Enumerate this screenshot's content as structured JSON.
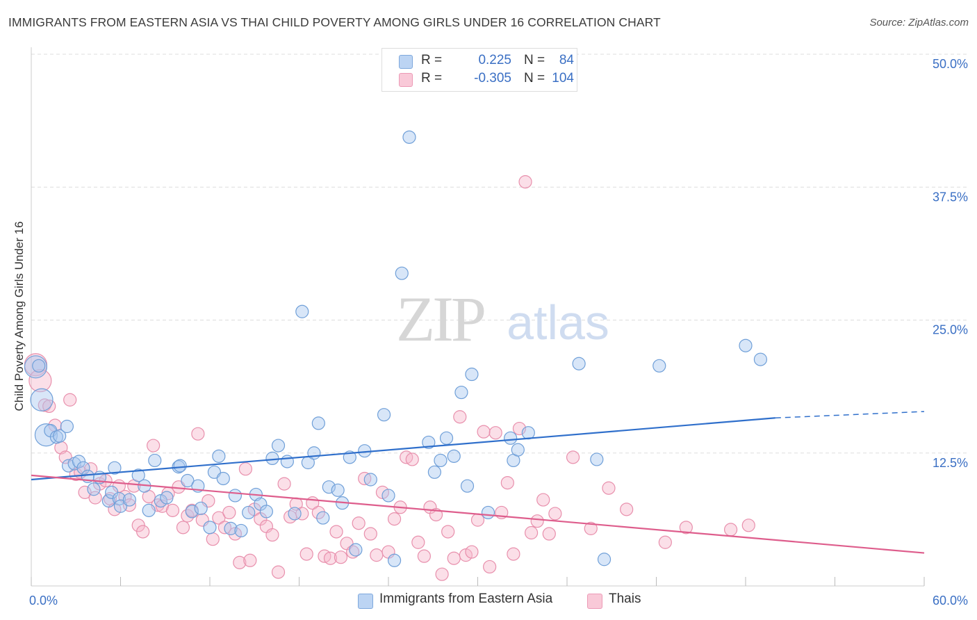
{
  "title": "IMMIGRANTS FROM EASTERN ASIA VS THAI CHILD POVERTY AMONG GIRLS UNDER 16 CORRELATION CHART",
  "source": "Source: ZipAtlas.com",
  "watermark": {
    "zip": "ZIP",
    "atlas": "atlas"
  },
  "colors": {
    "blue_fill": "#a9c7ef",
    "blue_stroke": "#6f9fd8",
    "blue_line": "#2f6fcb",
    "pink_fill": "#f7b9cd",
    "pink_stroke": "#e88fac",
    "pink_line": "#de5d8c",
    "axis_text": "#3a6fc4",
    "grid": "#dddddd"
  },
  "legend": {
    "rows": [
      {
        "r_label": "R =",
        "r_value": "0.225",
        "n_label": "N =",
        "n_value": "84"
      },
      {
        "r_label": "R =",
        "r_value": "-0.305",
        "n_label": "N =",
        "n_value": "104"
      }
    ],
    "bottom": [
      "Immigrants from Eastern Asia",
      "Thais"
    ]
  },
  "chart_data": {
    "type": "scatter",
    "title": "IMMIGRANTS FROM EASTERN ASIA VS THAI CHILD POVERTY AMONG GIRLS UNDER 16 CORRELATION CHART",
    "xlabel": "",
    "ylabel": "Child Poverty Among Girls Under 16",
    "xlim": [
      0,
      60
    ],
    "ylim": [
      0,
      50
    ],
    "x_tick_labels": [
      {
        "value": 0,
        "label": "0.0%"
      },
      {
        "value": 60,
        "label": "60.0%"
      }
    ],
    "y_tick_labels": [
      {
        "value": 12.5,
        "label": "12.5%"
      },
      {
        "value": 25,
        "label": "25.0%"
      },
      {
        "value": 37.5,
        "label": "37.5%"
      },
      {
        "value": 50,
        "label": "50.0%"
      }
    ],
    "grid": true,
    "legend_position": "top-center",
    "series": [
      {
        "name": "Immigrants from Eastern Asia",
        "r": 0.225,
        "n": 84,
        "trend": {
          "x": [
            0,
            50
          ],
          "y": [
            10.0,
            15.8
          ],
          "dashed_to": [
            60,
            16.4
          ]
        },
        "points": [
          [
            0.3,
            20.6
          ],
          [
            0.7,
            17.5
          ],
          [
            1.0,
            14.2
          ],
          [
            1.3,
            14.6
          ],
          [
            1.7,
            14.0
          ],
          [
            1.9,
            14.1
          ],
          [
            2.4,
            15.0
          ],
          [
            2.5,
            11.3
          ],
          [
            2.9,
            11.5
          ],
          [
            3.2,
            11.7
          ],
          [
            3.5,
            11.1
          ],
          [
            3.8,
            10.3
          ],
          [
            4.2,
            9.1
          ],
          [
            4.6,
            10.2
          ],
          [
            5.2,
            8.0
          ],
          [
            5.4,
            8.8
          ],
          [
            5.6,
            11.1
          ],
          [
            5.9,
            8.2
          ],
          [
            6.0,
            7.5
          ],
          [
            6.6,
            8.1
          ],
          [
            7.2,
            10.4
          ],
          [
            7.6,
            9.4
          ],
          [
            7.9,
            7.1
          ],
          [
            8.3,
            11.8
          ],
          [
            8.7,
            8.0
          ],
          [
            9.1,
            8.3
          ],
          [
            9.9,
            11.2
          ],
          [
            10.0,
            11.3
          ],
          [
            10.5,
            9.9
          ],
          [
            10.8,
            7.0
          ],
          [
            11.2,
            9.4
          ],
          [
            11.4,
            7.3
          ],
          [
            12.0,
            5.5
          ],
          [
            12.3,
            10.7
          ],
          [
            12.6,
            12.2
          ],
          [
            12.9,
            10.1
          ],
          [
            13.4,
            5.4
          ],
          [
            13.7,
            8.5
          ],
          [
            14.1,
            5.2
          ],
          [
            14.6,
            6.9
          ],
          [
            15.1,
            8.6
          ],
          [
            15.4,
            7.7
          ],
          [
            15.8,
            7.0
          ],
          [
            16.2,
            12.0
          ],
          [
            16.6,
            13.2
          ],
          [
            17.2,
            11.7
          ],
          [
            17.7,
            6.8
          ],
          [
            18.2,
            25.8
          ],
          [
            18.6,
            11.6
          ],
          [
            19.0,
            12.5
          ],
          [
            19.3,
            15.3
          ],
          [
            19.6,
            6.4
          ],
          [
            20.0,
            9.3
          ],
          [
            20.6,
            9.0
          ],
          [
            20.9,
            7.8
          ],
          [
            21.4,
            12.1
          ],
          [
            21.8,
            3.4
          ],
          [
            22.4,
            12.7
          ],
          [
            22.8,
            10.0
          ],
          [
            23.7,
            16.1
          ],
          [
            24.0,
            8.5
          ],
          [
            24.4,
            2.4
          ],
          [
            24.9,
            29.4
          ],
          [
            25.4,
            42.2
          ],
          [
            26.7,
            13.5
          ],
          [
            27.1,
            10.7
          ],
          [
            27.5,
            11.8
          ],
          [
            27.9,
            13.9
          ],
          [
            28.4,
            12.2
          ],
          [
            28.9,
            18.2
          ],
          [
            29.3,
            9.4
          ],
          [
            29.6,
            19.9
          ],
          [
            30.7,
            6.9
          ],
          [
            32.2,
            13.9
          ],
          [
            32.4,
            11.8
          ],
          [
            32.7,
            12.8
          ],
          [
            33.4,
            14.4
          ],
          [
            36.8,
            20.9
          ],
          [
            38.0,
            11.9
          ],
          [
            38.5,
            2.5
          ],
          [
            42.2,
            20.7
          ],
          [
            48.0,
            22.6
          ],
          [
            49.0,
            21.3
          ],
          [
            0.5,
            20.7
          ]
        ],
        "big_points": [
          [
            0.3,
            20.6
          ],
          [
            0.7,
            17.5
          ],
          [
            1.0,
            14.2
          ]
        ]
      },
      {
        "name": "Thais",
        "r": -0.305,
        "n": 104,
        "trend": {
          "x": [
            0,
            60
          ],
          "y": [
            10.4,
            3.1
          ]
        },
        "points": [
          [
            0.3,
            20.8
          ],
          [
            0.6,
            19.3
          ],
          [
            0.9,
            17.0
          ],
          [
            1.2,
            16.9
          ],
          [
            1.6,
            15.1
          ],
          [
            2.0,
            13.0
          ],
          [
            2.3,
            12.1
          ],
          [
            2.6,
            17.5
          ],
          [
            3.0,
            10.5
          ],
          [
            3.3,
            10.7
          ],
          [
            3.6,
            8.8
          ],
          [
            4.0,
            11.0
          ],
          [
            4.3,
            8.3
          ],
          [
            4.6,
            9.6
          ],
          [
            5.0,
            9.9
          ],
          [
            5.3,
            8.2
          ],
          [
            5.6,
            7.2
          ],
          [
            5.9,
            9.4
          ],
          [
            6.3,
            8.4
          ],
          [
            6.6,
            7.6
          ],
          [
            6.9,
            9.4
          ],
          [
            7.2,
            5.7
          ],
          [
            7.5,
            5.1
          ],
          [
            7.9,
            8.4
          ],
          [
            8.2,
            13.2
          ],
          [
            8.5,
            7.6
          ],
          [
            8.8,
            7.5
          ],
          [
            9.2,
            8.7
          ],
          [
            9.5,
            7.1
          ],
          [
            9.9,
            9.3
          ],
          [
            10.2,
            5.5
          ],
          [
            10.5,
            6.6
          ],
          [
            10.8,
            7.1
          ],
          [
            11.2,
            14.3
          ],
          [
            11.5,
            6.2
          ],
          [
            11.9,
            8.0
          ],
          [
            12.2,
            4.4
          ],
          [
            12.6,
            6.4
          ],
          [
            13.0,
            5.5
          ],
          [
            13.3,
            6.9
          ],
          [
            13.7,
            4.9
          ],
          [
            14.0,
            2.2
          ],
          [
            14.4,
            11.0
          ],
          [
            14.7,
            2.4
          ],
          [
            15.0,
            7.2
          ],
          [
            15.4,
            6.3
          ],
          [
            15.8,
            5.6
          ],
          [
            16.2,
            4.8
          ],
          [
            16.6,
            1.3
          ],
          [
            17.0,
            9.6
          ],
          [
            17.4,
            6.5
          ],
          [
            17.8,
            7.7
          ],
          [
            18.2,
            6.8
          ],
          [
            18.5,
            3.0
          ],
          [
            18.9,
            7.8
          ],
          [
            19.3,
            6.9
          ],
          [
            19.7,
            2.8
          ],
          [
            20.1,
            2.6
          ],
          [
            20.5,
            5.1
          ],
          [
            20.8,
            2.7
          ],
          [
            21.2,
            4.0
          ],
          [
            21.6,
            3.2
          ],
          [
            22.0,
            5.9
          ],
          [
            22.4,
            10.1
          ],
          [
            22.8,
            4.9
          ],
          [
            23.2,
            2.9
          ],
          [
            23.6,
            8.8
          ],
          [
            24.0,
            3.2
          ],
          [
            24.4,
            6.3
          ],
          [
            24.8,
            7.4
          ],
          [
            25.2,
            12.1
          ],
          [
            25.6,
            11.9
          ],
          [
            26.0,
            4.1
          ],
          [
            26.4,
            2.8
          ],
          [
            26.8,
            7.4
          ],
          [
            27.2,
            6.7
          ],
          [
            27.6,
            1.1
          ],
          [
            28.0,
            5.1
          ],
          [
            28.4,
            2.6
          ],
          [
            28.8,
            15.9
          ],
          [
            29.2,
            2.9
          ],
          [
            29.6,
            3.2
          ],
          [
            30.0,
            6.2
          ],
          [
            30.4,
            14.5
          ],
          [
            30.8,
            1.8
          ],
          [
            31.2,
            14.4
          ],
          [
            31.6,
            6.9
          ],
          [
            32.0,
            9.7
          ],
          [
            32.4,
            3.0
          ],
          [
            32.8,
            14.8
          ],
          [
            33.2,
            38.0
          ],
          [
            33.6,
            5.0
          ],
          [
            34.0,
            6.1
          ],
          [
            34.4,
            8.1
          ],
          [
            34.8,
            4.9
          ],
          [
            35.2,
            6.8
          ],
          [
            36.4,
            12.1
          ],
          [
            37.6,
            5.4
          ],
          [
            38.8,
            9.2
          ],
          [
            40.0,
            7.2
          ],
          [
            42.6,
            4.1
          ],
          [
            44.0,
            5.5
          ],
          [
            47.0,
            5.3
          ],
          [
            48.2,
            5.7
          ]
        ],
        "big_points": [
          [
            0.3,
            20.8
          ],
          [
            0.6,
            19.3
          ]
        ]
      }
    ]
  }
}
